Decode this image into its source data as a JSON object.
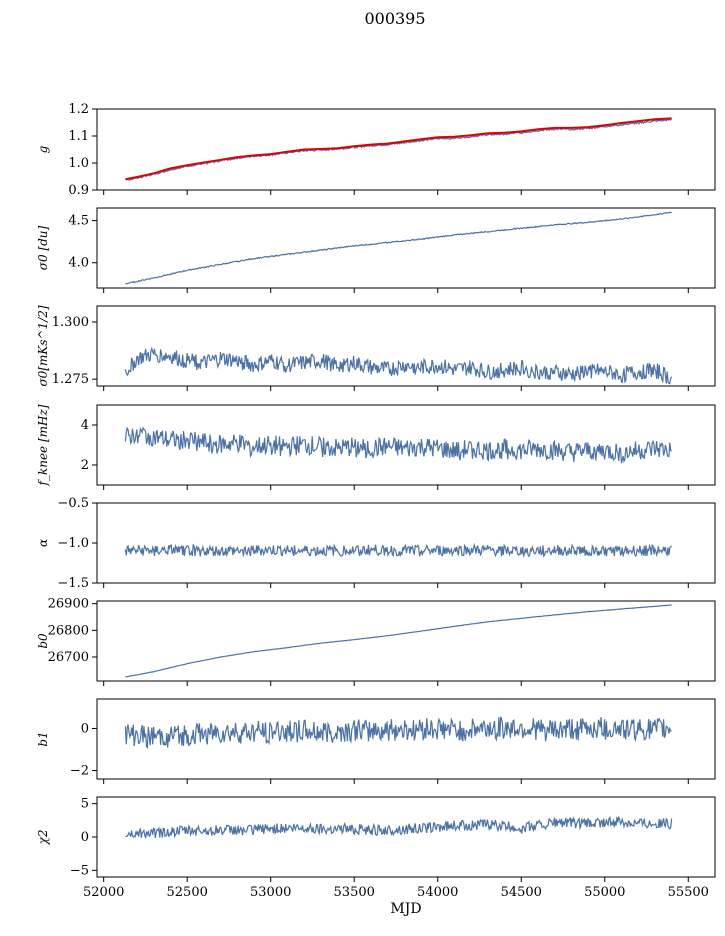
{
  "figure": {
    "title": "000395"
  },
  "chart_data": {
    "type": "line",
    "title": "000395",
    "xlabel": "MJD",
    "x_range": [
      52130,
      55400
    ],
    "xlim": [
      51960,
      55660
    ],
    "xticks": [
      52000,
      52500,
      53000,
      53500,
      54000,
      54500,
      55000,
      55500
    ],
    "colors": {
      "series": "#4c72a4",
      "model": "#e00000"
    },
    "panels": [
      {
        "ylabel": "g",
        "ylim": [
          0.9,
          1.2
        ],
        "yticks": [
          0.9,
          1.0,
          1.1,
          1.2
        ],
        "ytick_labels": [
          "0.9",
          "1.0",
          "1.1",
          "1.2"
        ],
        "series": [
          {
            "x": [
              52130,
              52200,
              52300,
              52400,
              52500,
              52600,
              52700,
              52800,
              52900,
              53000,
              53100,
              53200,
              53300,
              53400,
              53500,
              53600,
              53700,
              53800,
              53900,
              54000,
              54100,
              54200,
              54300,
              54400,
              54500,
              54600,
              54700,
              54800,
              54900,
              55000,
              55100,
              55200,
              55300,
              55400
            ],
            "y": [
              0.935,
              0.945,
              0.958,
              0.975,
              0.988,
              0.998,
              1.008,
              1.018,
              1.025,
              1.03,
              1.038,
              1.045,
              1.048,
              1.052,
              1.058,
              1.064,
              1.068,
              1.075,
              1.083,
              1.09,
              1.092,
              1.098,
              1.105,
              1.107,
              1.112,
              1.12,
              1.125,
              1.125,
              1.128,
              1.135,
              1.142,
              1.148,
              1.155,
              1.16
            ]
          }
        ],
        "overlay": {
          "x": [
            52130,
            52200,
            52300,
            52400,
            52500,
            52600,
            52700,
            52800,
            52900,
            53000,
            53100,
            53200,
            53300,
            53400,
            53500,
            53600,
            53700,
            53800,
            53900,
            54000,
            54100,
            54200,
            54300,
            54400,
            54500,
            54600,
            54700,
            54800,
            54900,
            55000,
            55100,
            55200,
            55300,
            55400
          ],
          "y": [
            0.94,
            0.948,
            0.962,
            0.98,
            0.992,
            1.002,
            1.012,
            1.022,
            1.028,
            1.033,
            1.042,
            1.05,
            1.052,
            1.055,
            1.062,
            1.068,
            1.072,
            1.08,
            1.088,
            1.095,
            1.097,
            1.103,
            1.11,
            1.112,
            1.117,
            1.125,
            1.13,
            1.13,
            1.133,
            1.14,
            1.148,
            1.155,
            1.162,
            1.165
          ]
        }
      },
      {
        "ylabel": "σ0 [du]",
        "ylim": [
          3.7,
          4.65
        ],
        "yticks": [
          4.0,
          4.5
        ],
        "ytick_labels": [
          "4.0",
          "4.5"
        ],
        "series": [
          {
            "x": [
              52130,
              52300,
              52500,
              52700,
              52900,
              53100,
              53300,
              53500,
              53700,
              53900,
              54100,
              54300,
              54500,
              54700,
              54900,
              55100,
              55300,
              55400
            ],
            "y": [
              3.75,
              3.82,
              3.91,
              3.98,
              4.05,
              4.1,
              4.15,
              4.2,
              4.24,
              4.28,
              4.33,
              4.37,
              4.41,
              4.45,
              4.48,
              4.52,
              4.57,
              4.6
            ]
          }
        ]
      },
      {
        "ylabel": "σ0[mKs^1/2]",
        "ylim": [
          1.272,
          1.307
        ],
        "yticks": [
          1.275,
          1.3
        ],
        "ytick_labels": [
          "1.275",
          "1.300"
        ],
        "series": [
          {
            "x": [
              52130,
              52200,
              52300,
              52400,
              52500,
              52600,
              52700,
              52800,
              52900,
              53000,
              53100,
              53200,
              53300,
              53400,
              53500,
              53600,
              53700,
              53800,
              53900,
              54000,
              54100,
              54200,
              54300,
              54400,
              54500,
              54600,
              54700,
              54800,
              54900,
              55000,
              55100,
              55200,
              55300,
              55400
            ],
            "y": [
              1.278,
              1.284,
              1.286,
              1.285,
              1.283,
              1.282,
              1.284,
              1.283,
              1.281,
              1.283,
              1.281,
              1.282,
              1.283,
              1.281,
              1.282,
              1.28,
              1.279,
              1.281,
              1.28,
              1.281,
              1.279,
              1.28,
              1.278,
              1.279,
              1.28,
              1.278,
              1.278,
              1.277,
              1.279,
              1.278,
              1.277,
              1.278,
              1.279,
              1.275
            ]
          }
        ]
      },
      {
        "ylabel": "f_knee [mHz]",
        "ylim": [
          1.0,
          5.0
        ],
        "yticks": [
          2,
          4
        ],
        "ytick_labels": [
          "2",
          "4"
        ],
        "series": [
          {
            "x": [
              52130,
              52200,
              52300,
              52400,
              52500,
              52600,
              52700,
              52800,
              52900,
              53000,
              53100,
              53200,
              53300,
              53400,
              53500,
              53600,
              53700,
              53800,
              53900,
              54000,
              54100,
              54200,
              54300,
              54400,
              54500,
              54600,
              54700,
              54800,
              54900,
              55000,
              55100,
              55200,
              55300,
              55400
            ],
            "y": [
              3.3,
              3.6,
              3.4,
              3.2,
              3.3,
              3.1,
              3.0,
              3.1,
              2.9,
              3.0,
              2.9,
              3.0,
              2.9,
              2.8,
              2.9,
              2.8,
              2.9,
              2.8,
              2.9,
              2.8,
              2.7,
              2.8,
              2.7,
              2.8,
              2.7,
              2.8,
              2.7,
              2.6,
              2.7,
              2.7,
              2.6,
              2.7,
              2.8,
              2.7
            ]
          }
        ]
      },
      {
        "ylabel": "α",
        "ylim": [
          -1.5,
          -0.5
        ],
        "yticks": [
          -1.5,
          -1.0,
          -0.5
        ],
        "ytick_labels": [
          "−1.5",
          "−1.0",
          "−0.5"
        ],
        "series": [
          {
            "x": [
              52130,
              52400,
              52700,
              53000,
              53300,
              53600,
              53900,
              54200,
              54500,
              54800,
              55100,
              55400
            ],
            "y": [
              -1.1,
              -1.09,
              -1.1,
              -1.09,
              -1.1,
              -1.09,
              -1.1,
              -1.09,
              -1.1,
              -1.09,
              -1.1,
              -1.09
            ]
          }
        ]
      },
      {
        "ylabel": "b0",
        "ylim": [
          26610,
          26910
        ],
        "yticks": [
          26700,
          26800,
          26900
        ],
        "ytick_labels": [
          "26700",
          "26800",
          "26900"
        ],
        "series": [
          {
            "x": [
              52130,
              52300,
              52500,
              52700,
              52900,
              53100,
              53300,
              53500,
              53700,
              53900,
              54100,
              54300,
              54500,
              54700,
              54900,
              55100,
              55300,
              55400
            ],
            "y": [
              26625,
              26645,
              26675,
              26700,
              26720,
              26735,
              26752,
              26765,
              26780,
              26797,
              26815,
              26832,
              26845,
              26858,
              26870,
              26880,
              26890,
              26895
            ]
          }
        ]
      },
      {
        "ylabel": "b1",
        "ylim": [
          -2.4,
          1.4
        ],
        "yticks": [
          -2,
          0
        ],
        "ytick_labels": [
          "−2",
          "0"
        ],
        "series": [
          {
            "x": [
              52130,
              52300,
              52500,
              52700,
              52900,
              53100,
              53300,
              53500,
              53700,
              53900,
              54100,
              54300,
              54500,
              54700,
              54900,
              55100,
              55300,
              55400
            ],
            "y": [
              -0.3,
              -0.4,
              -0.3,
              -0.2,
              -0.2,
              -0.1,
              -0.2,
              -0.1,
              -0.1,
              0.0,
              -0.1,
              0.0,
              0.0,
              -0.1,
              0.0,
              0.0,
              -0.1,
              0.0
            ]
          }
        ]
      },
      {
        "ylabel": "χ2",
        "ylim": [
          -6,
          6
        ],
        "yticks": [
          -5,
          0,
          5
        ],
        "ytick_labels": [
          "−5",
          "0",
          "5"
        ],
        "series": [
          {
            "x": [
              52130,
              52300,
              52500,
              52700,
              52900,
              53100,
              53300,
              53500,
              53700,
              53900,
              54100,
              54300,
              54500,
              54700,
              54900,
              55100,
              55300,
              55400
            ],
            "y": [
              0.4,
              0.6,
              0.9,
              1.0,
              1.1,
              1.3,
              1.3,
              1.2,
              1.0,
              1.3,
              1.7,
              1.9,
              1.3,
              2.2,
              2.0,
              2.3,
              2.1,
              2.0
            ]
          }
        ]
      }
    ]
  }
}
